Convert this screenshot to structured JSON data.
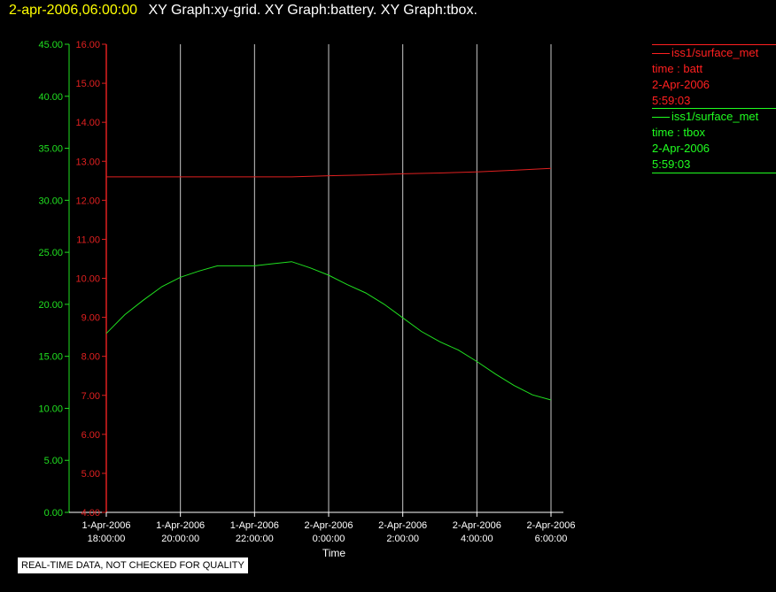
{
  "header": {
    "timestamp": "2-apr-2006,06:00:00",
    "graphs_text": "XY Graph:xy-grid.  XY Graph:battery.  XY Graph:tbox."
  },
  "legend": [
    {
      "lines": [
        "iss1/surface_met",
        "time : batt",
        "2-Apr-2006",
        "5:59:03"
      ],
      "color": "#ff2020"
    },
    {
      "lines": [
        "iss1/surface_met",
        "time : tbox",
        "2-Apr-2006",
        "5:59:03"
      ],
      "color": "#20ff20"
    }
  ],
  "notice": "REAL-TIME DATA, NOT CHECKED FOR QUALITY",
  "colors": {
    "batt": "#e02020",
    "tbox": "#20e020",
    "grid": "#c8c8c8",
    "axis": "#ffffff"
  },
  "chart_data": {
    "type": "line",
    "grid": true,
    "xlabel": "Time",
    "x_ticks": [
      [
        "1-Apr-2006",
        "18:00:00"
      ],
      [
        "1-Apr-2006",
        "20:00:00"
      ],
      [
        "1-Apr-2006",
        "22:00:00"
      ],
      [
        "2-Apr-2006",
        "0:00:00"
      ],
      [
        "2-Apr-2006",
        "2:00:00"
      ],
      [
        "2-Apr-2006",
        "4:00:00"
      ],
      [
        "2-Apr-2006",
        "6:00:00"
      ]
    ],
    "xlim": [
      "2006-04-01 18:00",
      "2006-04-02 06:00"
    ],
    "y_left_outer": {
      "label": "",
      "lim": [
        0,
        45
      ],
      "ticks": [
        "0.00",
        "5.00",
        "10.00",
        "15.00",
        "20.00",
        "25.00",
        "30.00",
        "35.00",
        "40.00",
        "45.00"
      ]
    },
    "y_left_inner": {
      "label": "",
      "lim": [
        4,
        16
      ],
      "ticks": [
        "4.00",
        "5.00",
        "6.00",
        "7.00",
        "8.00",
        "9.00",
        "10.00",
        "11.00",
        "12.00",
        "13.00",
        "14.00",
        "15.00",
        "16.00"
      ]
    },
    "series": [
      {
        "name": "iss1/surface_met time : batt",
        "axis": "y_left_inner",
        "x": [
          "2006-04-01 18:00",
          "2006-04-01 19:00",
          "2006-04-01 20:00",
          "2006-04-01 21:00",
          "2006-04-01 22:00",
          "2006-04-01 23:00",
          "2006-04-02 00:00",
          "2006-04-02 01:00",
          "2006-04-02 02:00",
          "2006-04-02 03:00",
          "2006-04-02 04:00",
          "2006-04-02 05:00",
          "2006-04-02 06:00"
        ],
        "values": [
          12.6,
          12.6,
          12.6,
          12.6,
          12.6,
          12.6,
          12.63,
          12.65,
          12.68,
          12.7,
          12.73,
          12.77,
          12.82
        ]
      },
      {
        "name": "iss1/surface_met time : tbox",
        "axis": "y_left_outer",
        "x": [
          "2006-04-01 18:00",
          "2006-04-01 18:30",
          "2006-04-01 19:00",
          "2006-04-01 19:30",
          "2006-04-01 20:00",
          "2006-04-01 20:30",
          "2006-04-01 21:00",
          "2006-04-01 21:30",
          "2006-04-01 22:00",
          "2006-04-01 22:30",
          "2006-04-01 23:00",
          "2006-04-01 23:30",
          "2006-04-02 00:00",
          "2006-04-02 00:30",
          "2006-04-02 01:00",
          "2006-04-02 01:30",
          "2006-04-02 02:00",
          "2006-04-02 02:30",
          "2006-04-02 03:00",
          "2006-04-02 03:30",
          "2006-04-02 04:00",
          "2006-04-02 04:30",
          "2006-04-02 05:00",
          "2006-04-02 05:30",
          "2006-04-02 06:00"
        ],
        "values": [
          17.2,
          19.0,
          20.4,
          21.7,
          22.6,
          23.2,
          23.7,
          23.7,
          23.7,
          23.9,
          24.1,
          23.5,
          22.8,
          21.9,
          21.1,
          20.0,
          18.7,
          17.4,
          16.4,
          15.6,
          14.5,
          13.3,
          12.2,
          11.3,
          10.8
        ]
      }
    ]
  }
}
